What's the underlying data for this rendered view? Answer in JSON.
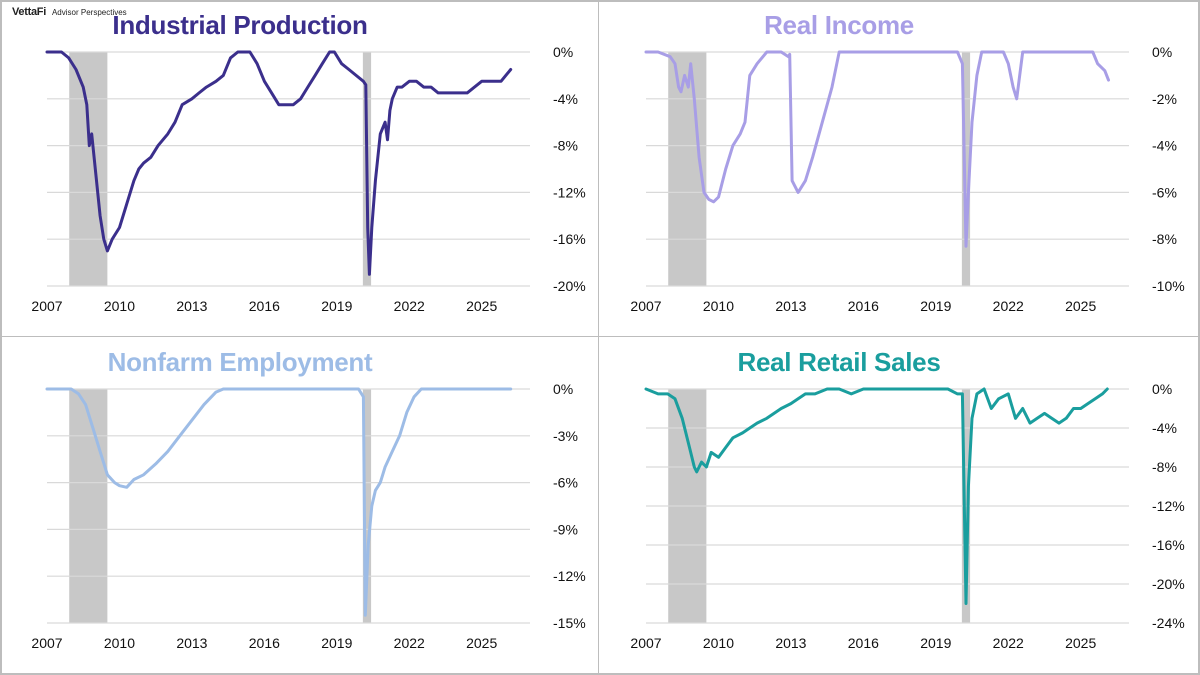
{
  "brand": {
    "name": "VettaFi",
    "tagline": "Advisor Perspectives"
  },
  "colors": {
    "gridline": "#d9d9d9",
    "recession": "#c8c8c8",
    "border": "#bdbdbd"
  },
  "chart_data": [
    {
      "type": "line",
      "title": "Industrial Production",
      "color": "#3b2f8c",
      "xlim": [
        2007,
        2027
      ],
      "xticks": [
        2007,
        2010,
        2013,
        2016,
        2019,
        2022,
        2025
      ],
      "xtick_labels": [
        "2007",
        "2010",
        "2013",
        "2016",
        "2019",
        "2022",
        "2025"
      ],
      "ylim": [
        -20,
        0
      ],
      "yticks": [
        0,
        -4,
        -8,
        -12,
        -16,
        -20
      ],
      "ytick_labels": [
        "0%",
        "-4%",
        "-8%",
        "-12%",
        "-16%",
        "-20%"
      ],
      "recessions": [
        [
          2007.92,
          2009.5
        ],
        [
          2020.08,
          2020.42
        ]
      ],
      "series": [
        {
          "x": [
            2007.0,
            2007.3,
            2007.6,
            2007.9,
            2008.2,
            2008.5,
            2008.65,
            2008.75,
            2008.85,
            2008.95,
            2009.05,
            2009.2,
            2009.35,
            2009.5,
            2009.7,
            2010.0,
            2010.3,
            2010.6,
            2010.8,
            2011.0,
            2011.3,
            2011.6,
            2012.0,
            2012.3,
            2012.6,
            2013.0,
            2013.3,
            2013.6,
            2014.0,
            2014.3,
            2014.6,
            2014.9,
            2015.2,
            2015.4,
            2015.7,
            2016.0,
            2016.3,
            2016.6,
            2016.9,
            2017.2,
            2017.5,
            2017.8,
            2018.1,
            2018.4,
            2018.7,
            2018.9,
            2019.2,
            2019.5,
            2019.8,
            2020.1,
            2020.2,
            2020.28,
            2020.35,
            2020.45,
            2020.6,
            2020.8,
            2021.0,
            2021.1,
            2021.2,
            2021.3,
            2021.5,
            2021.7,
            2022.0,
            2022.3,
            2022.6,
            2022.9,
            2023.2,
            2023.5,
            2023.8,
            2024.1,
            2024.4,
            2024.7,
            2025.0,
            2025.3,
            2025.6,
            2025.8,
            2026.0,
            2026.2
          ],
          "y": [
            0,
            0,
            0,
            -0.5,
            -1.5,
            -3,
            -4.5,
            -8,
            -7,
            -9,
            -11,
            -14,
            -16,
            -17,
            -16,
            -15,
            -13,
            -11,
            -10,
            -9.5,
            -9,
            -8,
            -7,
            -6,
            -4.5,
            -4,
            -3.5,
            -3,
            -2.5,
            -2,
            -0.5,
            0,
            0,
            0,
            -1,
            -2.5,
            -3.5,
            -4.5,
            -4.5,
            -4.5,
            -4,
            -3,
            -2,
            -1,
            0,
            0,
            -1,
            -1.5,
            -2,
            -2.5,
            -2.8,
            -15,
            -19,
            -15,
            -11,
            -7,
            -6,
            -7.5,
            -5,
            -4,
            -3,
            -3,
            -2.5,
            -2.5,
            -3,
            -3,
            -3.5,
            -3.5,
            -3.5,
            -3.5,
            -3.5,
            -3,
            -2.5,
            -2.5,
            -2.5,
            -2.5,
            -2,
            -1.5
          ]
        }
      ]
    },
    {
      "type": "line",
      "title": "Real Income",
      "color": "#a89ee6",
      "xlim": [
        2007,
        2027
      ],
      "xticks": [
        2007,
        2010,
        2013,
        2016,
        2019,
        2022,
        2025
      ],
      "xtick_labels": [
        "2007",
        "2010",
        "2013",
        "2016",
        "2019",
        "2022",
        "2025"
      ],
      "ylim": [
        -10,
        0
      ],
      "yticks": [
        0,
        -2,
        -4,
        -6,
        -8,
        -10
      ],
      "ytick_labels": [
        "0%",
        "-2%",
        "-4%",
        "-6%",
        "-8%",
        "-10%"
      ],
      "recessions": [
        [
          2007.92,
          2009.5
        ],
        [
          2020.08,
          2020.42
        ]
      ],
      "series": [
        {
          "x": [
            2007.0,
            2007.5,
            2008.0,
            2008.2,
            2008.35,
            2008.45,
            2008.6,
            2008.75,
            2008.85,
            2009.0,
            2009.2,
            2009.4,
            2009.6,
            2009.8,
            2010.0,
            2010.3,
            2010.6,
            2010.9,
            2011.1,
            2011.3,
            2011.6,
            2012.0,
            2012.3,
            2012.6,
            2012.9,
            2012.95,
            2013.05,
            2013.3,
            2013.6,
            2013.9,
            2014.3,
            2014.7,
            2015.0,
            2015.5,
            2016.0,
            2016.5,
            2017.0,
            2017.5,
            2018.0,
            2018.5,
            2019.0,
            2019.5,
            2019.9,
            2020.1,
            2020.25,
            2020.35,
            2020.5,
            2020.7,
            2020.9,
            2021.2,
            2021.5,
            2021.8,
            2022.0,
            2022.2,
            2022.35,
            2022.6,
            2023.0,
            2023.5,
            2024.0,
            2024.5,
            2025.0,
            2025.3,
            2025.5,
            2025.7,
            2026.0,
            2026.15
          ],
          "y": [
            0,
            0,
            -0.2,
            -0.5,
            -1.5,
            -1.7,
            -1,
            -1.5,
            -0.5,
            -2,
            -4.5,
            -6,
            -6.3,
            -6.4,
            -6.2,
            -5,
            -4,
            -3.5,
            -3,
            -1,
            -0.5,
            0,
            0,
            0,
            -0.2,
            -0.1,
            -5.5,
            -6,
            -5.5,
            -4.5,
            -3,
            -1.5,
            0,
            0,
            0,
            0,
            0,
            0,
            0,
            0,
            0,
            0,
            0,
            -0.5,
            -8.3,
            -6,
            -3,
            -1,
            0,
            0,
            0,
            0,
            -0.5,
            -1.5,
            -2,
            0,
            0,
            0,
            0,
            0,
            0,
            0,
            0,
            -0.5,
            -0.8,
            -1.2
          ]
        }
      ]
    },
    {
      "type": "line",
      "title": "Nonfarm Employment",
      "color": "#9dbce6",
      "xlim": [
        2007,
        2027
      ],
      "xticks": [
        2007,
        2010,
        2013,
        2016,
        2019,
        2022,
        2025
      ],
      "xtick_labels": [
        "2007",
        "2010",
        "2013",
        "2016",
        "2019",
        "2022",
        "2025"
      ],
      "ylim": [
        -15,
        0
      ],
      "yticks": [
        0,
        -3,
        -6,
        -9,
        -12,
        -15
      ],
      "ytick_labels": [
        "0%",
        "-3%",
        "-6%",
        "-9%",
        "-12%",
        "-15%"
      ],
      "recessions": [
        [
          2007.92,
          2009.5
        ],
        [
          2020.08,
          2020.42
        ]
      ],
      "series": [
        {
          "x": [
            2007.0,
            2007.5,
            2008.0,
            2008.3,
            2008.6,
            2008.9,
            2009.2,
            2009.5,
            2009.8,
            2010.0,
            2010.3,
            2010.6,
            2011.0,
            2011.5,
            2012.0,
            2012.5,
            2013.0,
            2013.5,
            2014.0,
            2014.3,
            2014.5,
            2015.0,
            2016.0,
            2017.0,
            2018.0,
            2019.0,
            2019.9,
            2020.1,
            2020.18,
            2020.3,
            2020.45,
            2020.6,
            2020.8,
            2021.0,
            2021.3,
            2021.6,
            2021.9,
            2022.2,
            2022.5,
            2023.0,
            2024.0,
            2025.0,
            2025.5,
            2026.0,
            2026.2
          ],
          "y": [
            0,
            0,
            0,
            -0.3,
            -1,
            -2.5,
            -4,
            -5.5,
            -6,
            -6.2,
            -6.3,
            -5.8,
            -5.5,
            -4.8,
            -4,
            -3,
            -2,
            -1,
            -0.2,
            0,
            0,
            0,
            0,
            0,
            0,
            0,
            0,
            -0.5,
            -14.5,
            -10,
            -7.5,
            -6.5,
            -6,
            -5,
            -4,
            -3,
            -1.5,
            -0.5,
            0,
            0,
            0,
            0,
            0,
            0,
            0
          ]
        }
      ]
    },
    {
      "type": "line",
      "title": "Real Retail Sales",
      "color": "#1a9e9e",
      "xlim": [
        2007,
        2027
      ],
      "xticks": [
        2007,
        2010,
        2013,
        2016,
        2019,
        2022,
        2025
      ],
      "xtick_labels": [
        "2007",
        "2010",
        "2013",
        "2016",
        "2019",
        "2022",
        "2025"
      ],
      "ylim": [
        -24,
        0
      ],
      "yticks": [
        0,
        -4,
        -8,
        -12,
        -16,
        -20,
        -24
      ],
      "ytick_labels": [
        "0%",
        "-4%",
        "-8%",
        "-12%",
        "-16%",
        "-20%",
        "-24%"
      ],
      "recessions": [
        [
          2007.92,
          2009.5
        ],
        [
          2020.08,
          2020.42
        ]
      ],
      "series": [
        {
          "x": [
            2007.0,
            2007.5,
            2007.9,
            2008.2,
            2008.5,
            2008.8,
            2009.0,
            2009.1,
            2009.3,
            2009.5,
            2009.7,
            2010.0,
            2010.3,
            2010.6,
            2011.0,
            2011.3,
            2011.6,
            2012.0,
            2012.3,
            2012.6,
            2013.0,
            2013.3,
            2013.6,
            2014.0,
            2014.5,
            2015.0,
            2015.5,
            2016.0,
            2016.5,
            2017.0,
            2017.5,
            2018.0,
            2018.5,
            2019.0,
            2019.5,
            2019.9,
            2020.1,
            2020.25,
            2020.35,
            2020.5,
            2020.7,
            2021.0,
            2021.3,
            2021.6,
            2022.0,
            2022.3,
            2022.6,
            2022.9,
            2023.2,
            2023.5,
            2023.8,
            2024.1,
            2024.4,
            2024.7,
            2025.0,
            2025.3,
            2025.6,
            2025.9,
            2026.1
          ],
          "y": [
            0,
            -0.5,
            -0.5,
            -1,
            -3,
            -6,
            -8,
            -8.5,
            -7.5,
            -8,
            -6.5,
            -7,
            -6,
            -5,
            -4.5,
            -4,
            -3.5,
            -3,
            -2.5,
            -2,
            -1.5,
            -1,
            -0.5,
            -0.5,
            0,
            0,
            -0.5,
            0,
            0,
            0,
            0,
            0,
            0,
            0,
            0,
            -0.5,
            -0.5,
            -22,
            -10,
            -3,
            -0.5,
            0,
            -2,
            -1,
            -0.5,
            -3,
            -2,
            -3.5,
            -3,
            -2.5,
            -3,
            -3.5,
            -3,
            -2,
            -2,
            -1.5,
            -1,
            -0.5,
            0
          ]
        }
      ]
    }
  ]
}
